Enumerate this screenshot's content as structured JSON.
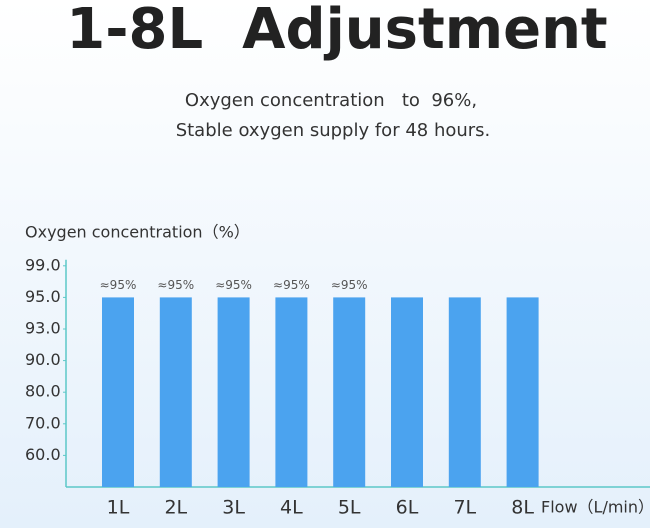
{
  "chart_data": {
    "type": "bar",
    "title": "1-8L  Adjustment",
    "subtitle": [
      "Oxygen concentration   to  96%,",
      "Stable oxygen supply for 48 hours."
    ],
    "y_label": "Oxygen concentration（%）",
    "x_label": "Flow（L/min）",
    "categories": [
      "1L",
      "2L",
      "3L",
      "4L",
      "5L",
      "6L",
      "7L",
      "8L"
    ],
    "values": [
      95,
      95,
      95,
      95,
      95,
      95,
      95,
      95
    ],
    "value_labels": [
      "≈95%",
      "≈95%",
      "≈95%",
      "≈95%",
      "≈95%",
      null,
      null,
      null
    ],
    "color": "#4ba3ef",
    "axis_color": "#5cc8c8",
    "ylim": [
      50,
      99
    ],
    "yticks": [
      {
        "value": 60,
        "label": "60.0"
      },
      {
        "value": 70,
        "label": "70.0"
      },
      {
        "value": 80,
        "label": "80.0"
      },
      {
        "value": 90,
        "label": "90.0"
      },
      {
        "value": 93,
        "label": "93.0"
      },
      {
        "value": 95,
        "label": "95.0"
      },
      {
        "value": 99,
        "label": "99.0"
      }
    ],
    "grid": false
  }
}
